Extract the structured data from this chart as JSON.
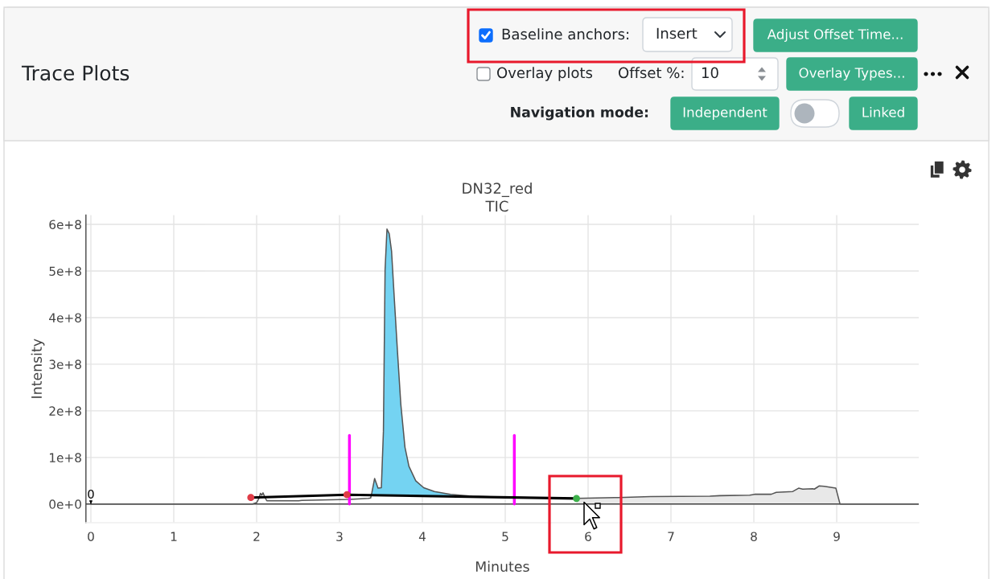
{
  "chart_data": [
    {
      "type": "other",
      "title": "Trace Plots",
      "annotations": [
        "Baseline anchors:",
        "Insert",
        "Adjust Offset Time...",
        "Overlay plots",
        "Offset %:",
        "10",
        "Overlay Types...",
        "Navigation mode:",
        "Independent",
        "Linked"
      ]
    },
    {
      "type": "line",
      "title": "DN32_red",
      "subtitle": "TIC",
      "xlabel": "Minutes",
      "ylabel": "Intensity",
      "xlim": [
        -0.06,
        9.99
      ],
      "ylim": [
        -40000000.0,
        620000000.0
      ],
      "xticks": [
        0,
        1,
        2,
        3,
        4,
        5,
        6,
        7,
        8,
        9
      ],
      "yticks": [
        {
          "value": 0,
          "label": "0e+0"
        },
        {
          "value": 100000000.0,
          "label": "1e+8"
        },
        {
          "value": 200000000.0,
          "label": "2e+8"
        },
        {
          "value": 300000000.0,
          "label": "3e+8"
        },
        {
          "value": 400000000.0,
          "label": "4e+8"
        },
        {
          "value": 500000000.0,
          "label": "5e+8"
        },
        {
          "value": 600000000.0,
          "label": "6e+8"
        }
      ],
      "grid": true,
      "ref_lines": [
        {
          "axis": "y",
          "value": 0,
          "color": "#444444"
        }
      ],
      "annotations": [
        {
          "text": "0",
          "x": 0,
          "y": 0
        }
      ],
      "series": [
        {
          "type": "area",
          "color": "#e8e8e8",
          "x": [
            5.86,
            5.86,
            6.357,
            6.756,
            7.47,
            7.59,
            7.95,
            8.01,
            8.21,
            8.27,
            8.47,
            8.54,
            8.59,
            8.71,
            8.73,
            8.79,
            8.85,
            8.99,
            9.04
          ],
          "values": [
            0,
            12000000.0,
            14000000.0,
            16000000.0,
            17000000.0,
            18000000.0,
            19000000.0,
            21000000.0,
            21000000.0,
            25000000.0,
            27000000.0,
            34000000.0,
            32000000.0,
            33000000.0,
            32000000.0,
            39000000.0,
            38000000.0,
            34000000.0,
            0
          ]
        },
        {
          "type": "area",
          "color": "#74d3f2",
          "x": [
            3.385,
            3.39,
            3.424,
            3.465,
            3.505,
            3.53,
            3.55,
            3.573,
            3.6,
            3.628,
            3.66,
            3.699,
            3.74,
            3.79,
            3.838,
            3.92,
            4.016,
            4.146,
            4.34,
            4.6
          ],
          "values": [
            19000000.0,
            24000000.0,
            55000000.0,
            34000000.0,
            35000000.0,
            156000000.0,
            503000000.0,
            590000000.0,
            580000000.0,
            543000000.0,
            445000000.0,
            329000000.0,
            214000000.0,
            122000000.0,
            81000000.0,
            50000000.0,
            35000000.0,
            27000000.0,
            21000000.0,
            16000000.0
          ]
        },
        {
          "type": "line",
          "color": "#555555",
          "x": [
            0,
            1.95,
            2.0,
            2.027,
            2.046,
            2.061,
            2.077,
            2.096,
            2.123,
            2.507,
            2.545,
            3.12,
            3.35,
            3.376,
            3.39,
            3.424,
            3.465,
            3.505,
            3.53,
            3.55,
            3.573,
            3.6,
            3.628,
            3.66,
            3.699,
            3.74,
            3.79,
            3.838,
            3.92,
            4.016,
            4.146,
            4.34,
            4.6,
            4.9,
            5.3,
            5.6,
            5.86,
            6.357,
            6.756,
            7.47,
            7.59,
            7.95,
            8.01,
            8.21,
            8.27,
            8.47,
            8.54,
            8.59,
            8.71,
            8.73,
            8.79,
            8.85,
            8.99,
            9.04,
            9.99
          ],
          "values": [
            0,
            0,
            3000000.0,
            12000000.0,
            23000000.0,
            19000000.0,
            24000000.0,
            16000000.0,
            7000000.0,
            7000000.0,
            8000000.0,
            10000000.0,
            12000000.0,
            13000000.0,
            24000000.0,
            55000000.0,
            34000000.0,
            35000000.0,
            156000000.0,
            503000000.0,
            590000000.0,
            580000000.0,
            543000000.0,
            445000000.0,
            329000000.0,
            214000000.0,
            122000000.0,
            81000000.0,
            50000000.0,
            35000000.0,
            27000000.0,
            21000000.0,
            17000000.0,
            15000000.0,
            14000000.0,
            13000000.0,
            12000000.0,
            14000000.0,
            16000000.0,
            17000000.0,
            18000000.0,
            19000000.0,
            21000000.0,
            21000000.0,
            25000000.0,
            27000000.0,
            34000000.0,
            32000000.0,
            33000000.0,
            32000000.0,
            39000000.0,
            38000000.0,
            34000000.0,
            0,
            0
          ]
        },
        {
          "type": "line",
          "color": "#ff00ff",
          "x": [
            3.12,
            3.12
          ],
          "values": [
            0,
            147000000.0
          ]
        },
        {
          "type": "line",
          "color": "#ff00ff",
          "x": [
            5.11,
            5.11
          ],
          "values": [
            0,
            147000000.0
          ]
        },
        {
          "type": "line",
          "color": "#000000",
          "marker": "circle",
          "colors": [
            "#e03c47",
            "#e03c47",
            "#3db14b"
          ],
          "x": [
            1.93,
            3.09,
            5.86
          ],
          "values": [
            14000000.0,
            20000000.0,
            12000000.0
          ]
        }
      ]
    }
  ]
}
